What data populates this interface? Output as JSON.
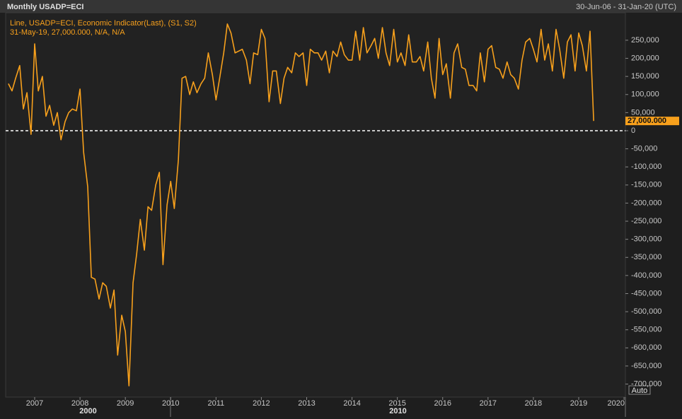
{
  "chart_data": {
    "type": "line",
    "title": "Monthly USADP=ECI",
    "date_range": "30-Jun-06 - 31-Jan-20 (UTC)",
    "legend_label": "Line, USADP=ECI, Economic Indicator(Last), (S1, S2)",
    "cursor_label": "31-May-19, 27,000.000, N/A, N/A",
    "scale_mode": "Auto",
    "decade_labels": [
      "2000",
      "2010"
    ],
    "x": [
      2006.42,
      2006.5,
      2006.58,
      2006.67,
      2006.75,
      2006.83,
      2006.92,
      2007.0,
      2007.08,
      2007.17,
      2007.25,
      2007.33,
      2007.42,
      2007.5,
      2007.58,
      2007.67,
      2007.75,
      2007.83,
      2007.92,
      2008.0,
      2008.08,
      2008.17,
      2008.25,
      2008.33,
      2008.42,
      2008.5,
      2008.58,
      2008.67,
      2008.75,
      2008.83,
      2008.92,
      2009.0,
      2009.08,
      2009.17,
      2009.25,
      2009.33,
      2009.42,
      2009.5,
      2009.58,
      2009.67,
      2009.75,
      2009.83,
      2009.92,
      2010.0,
      2010.08,
      2010.17,
      2010.25,
      2010.33,
      2010.42,
      2010.5,
      2010.58,
      2010.67,
      2010.75,
      2010.83,
      2010.92,
      2011.0,
      2011.08,
      2011.17,
      2011.25,
      2011.33,
      2011.42,
      2011.5,
      2011.58,
      2011.67,
      2011.75,
      2011.83,
      2011.92,
      2012.0,
      2012.08,
      2012.17,
      2012.25,
      2012.33,
      2012.42,
      2012.5,
      2012.58,
      2012.67,
      2012.75,
      2012.83,
      2012.92,
      2013.0,
      2013.08,
      2013.17,
      2013.25,
      2013.33,
      2013.42,
      2013.5,
      2013.58,
      2013.67,
      2013.75,
      2013.83,
      2013.92,
      2014.0,
      2014.08,
      2014.17,
      2014.25,
      2014.33,
      2014.42,
      2014.5,
      2014.58,
      2014.67,
      2014.75,
      2014.83,
      2014.92,
      2015.0,
      2015.08,
      2015.17,
      2015.25,
      2015.33,
      2015.42,
      2015.5,
      2015.58,
      2015.67,
      2015.75,
      2015.83,
      2015.92,
      2016.0,
      2016.08,
      2016.17,
      2016.25,
      2016.33,
      2016.42,
      2016.5,
      2016.58,
      2016.67,
      2016.75,
      2016.83,
      2016.92,
      2017.0,
      2017.08,
      2017.17,
      2017.25,
      2017.33,
      2017.42,
      2017.5,
      2017.58,
      2017.67,
      2017.75,
      2017.83,
      2017.92,
      2018.0,
      2018.08,
      2018.17,
      2018.25,
      2018.33,
      2018.42,
      2018.5,
      2018.58,
      2018.67,
      2018.75,
      2018.83,
      2018.92,
      2019.0,
      2019.08,
      2019.17,
      2019.25,
      2019.33
    ],
    "series": [
      {
        "name": "USADP=ECI",
        "color": "#f7a01c",
        "values": [
          130000,
          110000,
          145000,
          180000,
          60000,
          105000,
          -10000,
          240000,
          110000,
          150000,
          40000,
          70000,
          15000,
          50000,
          -25000,
          25000,
          50000,
          60000,
          55000,
          115000,
          -60000,
          -155000,
          -405000,
          -410000,
          -465000,
          -420000,
          -430000,
          -490000,
          -440000,
          -620000,
          -510000,
          -555000,
          -705000,
          -420000,
          -340000,
          -245000,
          -330000,
          -210000,
          -220000,
          -150000,
          -115000,
          -370000,
          -205000,
          -140000,
          -215000,
          -80000,
          145000,
          150000,
          100000,
          135000,
          105000,
          130000,
          145000,
          215000,
          155000,
          85000,
          145000,
          215000,
          295000,
          270000,
          215000,
          220000,
          225000,
          195000,
          130000,
          215000,
          210000,
          280000,
          255000,
          80000,
          165000,
          165000,
          75000,
          145000,
          175000,
          160000,
          215000,
          205000,
          215000,
          125000,
          225000,
          215000,
          215000,
          195000,
          220000,
          160000,
          220000,
          205000,
          245000,
          210000,
          195000,
          195000,
          275000,
          195000,
          285000,
          215000,
          235000,
          255000,
          200000,
          285000,
          215000,
          180000,
          280000,
          190000,
          215000,
          180000,
          265000,
          190000,
          190000,
          205000,
          165000,
          245000,
          145000,
          90000,
          255000,
          155000,
          185000,
          90000,
          215000,
          240000,
          175000,
          170000,
          125000,
          125000,
          110000,
          215000,
          135000,
          225000,
          235000,
          175000,
          170000,
          145000,
          190000,
          155000,
          145000,
          115000,
          195000,
          245000,
          255000,
          225000,
          190000,
          280000,
          195000,
          240000,
          165000,
          280000,
          225000,
          145000,
          245000,
          265000,
          165000,
          270000,
          235000,
          165000,
          275000,
          27000
        ]
      }
    ],
    "last_value_label": {
      "value": 27000,
      "label": "27,000.000"
    },
    "reference_line": 0,
    "xlim": [
      2006.36,
      2020.03
    ],
    "xticks": [
      2007,
      2008,
      2009,
      2010,
      2011,
      2012,
      2013,
      2014,
      2015,
      2016,
      2017,
      2018,
      2019,
      2020
    ],
    "ylim": [
      -736000,
      326000
    ],
    "yticks": [
      {
        "value": -700000,
        "label": "-700,000"
      },
      {
        "value": -650000,
        "label": "-650,000"
      },
      {
        "value": -600000,
        "label": "-600,000"
      },
      {
        "value": -550000,
        "label": "-550,000"
      },
      {
        "value": -500000,
        "label": "-500,000"
      },
      {
        "value": -450000,
        "label": "-450,000"
      },
      {
        "value": -400000,
        "label": "-400,000"
      },
      {
        "value": -350000,
        "label": "-350,000"
      },
      {
        "value": -300000,
        "label": "-300,000"
      },
      {
        "value": -250000,
        "label": "-250,000"
      },
      {
        "value": -200000,
        "label": "-200,000"
      },
      {
        "value": -150000,
        "label": "-150,000"
      },
      {
        "value": -100000,
        "label": "-100,000"
      },
      {
        "value": -50000,
        "label": "-50,000"
      },
      0,
      {
        "value": 50000,
        "label": "50,000"
      },
      {
        "value": 100000,
        "label": "100,000"
      },
      {
        "value": 150000,
        "label": "150,000"
      },
      {
        "value": 200000,
        "label": "200,000"
      },
      {
        "value": 250000,
        "label": "250,000"
      }
    ],
    "grid": false
  }
}
